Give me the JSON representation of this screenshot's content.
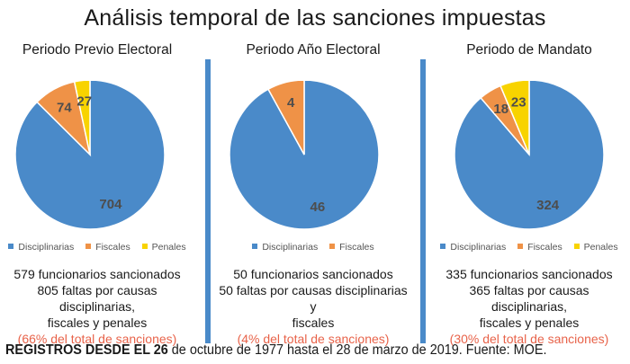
{
  "title": "Análisis temporal de las sanciones impuestas",
  "colors": {
    "disciplinarias": "#4a8ac9",
    "fiscales": "#ef9247",
    "penales": "#f8d300",
    "pct": "#e8634a",
    "divider": "#4a8ac9"
  },
  "chart_data": [
    {
      "type": "pie",
      "title": "Periodo Previo Electoral",
      "categories": [
        "Disciplinarias",
        "Fiscales",
        "Penales"
      ],
      "values": [
        704,
        74,
        27
      ],
      "data_labels": [
        "704",
        "74",
        "27"
      ],
      "legend": [
        "Disciplinarias",
        "Fiscales",
        "Penales"
      ],
      "legend_position": "bottom"
    },
    {
      "type": "pie",
      "title": "Periodo Año Electoral",
      "categories": [
        "Disciplinarias",
        "Fiscales"
      ],
      "values": [
        46,
        4
      ],
      "data_labels": [
        "46",
        "4"
      ],
      "legend": [
        "Disciplinarias",
        "Fiscales"
      ],
      "legend_position": "bottom"
    },
    {
      "type": "pie",
      "title": "Periodo de Mandato",
      "categories": [
        "Disciplinarias",
        "Fiscales",
        "Penales"
      ],
      "values": [
        324,
        18,
        23
      ],
      "data_labels": [
        "324",
        "18",
        "23"
      ],
      "legend": [
        "Disciplinarias",
        "Fiscales",
        "Penales"
      ],
      "legend_position": "bottom"
    }
  ],
  "panels": [
    {
      "line1": "579 funcionarios sancionados",
      "line2": "805 faltas por causas disciplinarias,",
      "line3": "fiscales y penales",
      "pct": "(66% del total de sanciones)"
    },
    {
      "line1": "50 funcionarios sancionados",
      "line2": "50 faltas por causas disciplinarias y",
      "line3": "fiscales",
      "pct": "(4% del total de sanciones)"
    },
    {
      "line1": "335 funcionarios sancionados",
      "line2": "365 faltas por causas disciplinarias,",
      "line3": "fiscales y penales",
      "pct": "(30% del total de sanciones)"
    }
  ],
  "footer": {
    "bold": "REGISTROS DESDE EL 26",
    "rest": " de octubre de 1977 hasta el 28 de marzo de 2019. Fuente: MOE."
  }
}
